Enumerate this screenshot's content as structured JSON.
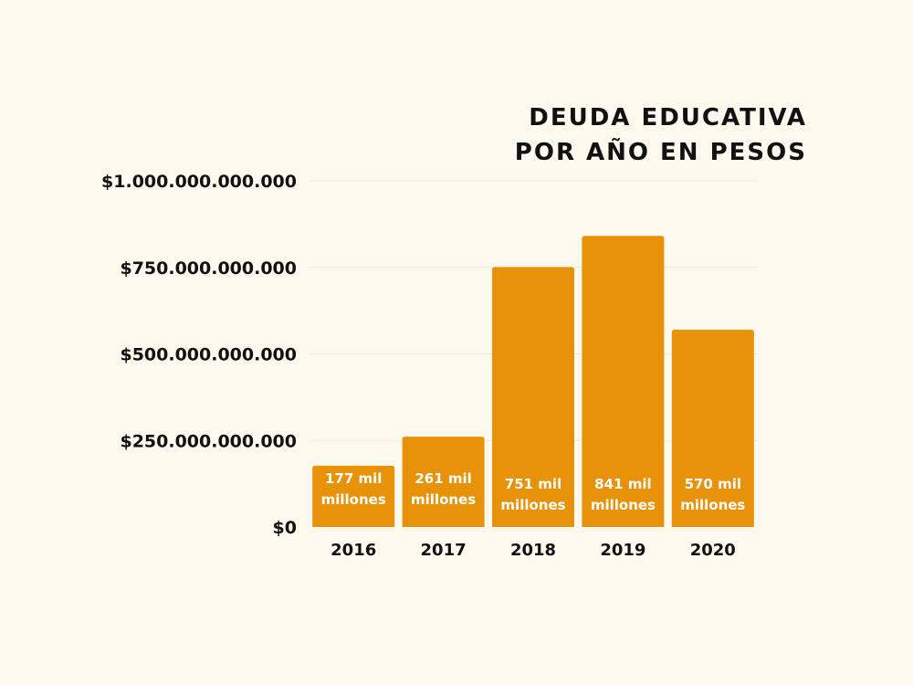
{
  "chart_data": {
    "type": "bar",
    "title_lines": [
      "DEUDA EDUCATIVA",
      "POR AÑO EN PESOS"
    ],
    "categories": [
      "2016",
      "2017",
      "2018",
      "2019",
      "2020"
    ],
    "values": [
      177000000000,
      261000000000,
      751000000000,
      841000000000,
      570000000000
    ],
    "bar_labels": [
      [
        "177 mil",
        "millones"
      ],
      [
        "261 mil",
        "millones"
      ],
      [
        "751 mil",
        "millones"
      ],
      [
        "841 mil",
        "millones"
      ],
      [
        "570 mil",
        "millones"
      ]
    ],
    "yticks": [
      {
        "value": 0,
        "label": "$0"
      },
      {
        "value": 250000000000,
        "label": "$250.000.000.000"
      },
      {
        "value": 500000000000,
        "label": "$500.000.000.000"
      },
      {
        "value": 750000000000,
        "label": "$750.000.000.000"
      },
      {
        "value": 1000000000000,
        "label": "$1.000.000.000.000"
      }
    ],
    "ylim": [
      0,
      1000000000000
    ],
    "grid": true,
    "colors": {
      "bar": "#e8920a",
      "background": "#fdf9ef",
      "grid": "#f1ead9",
      "text": "#111111",
      "bar_label": "#ffffff"
    }
  }
}
